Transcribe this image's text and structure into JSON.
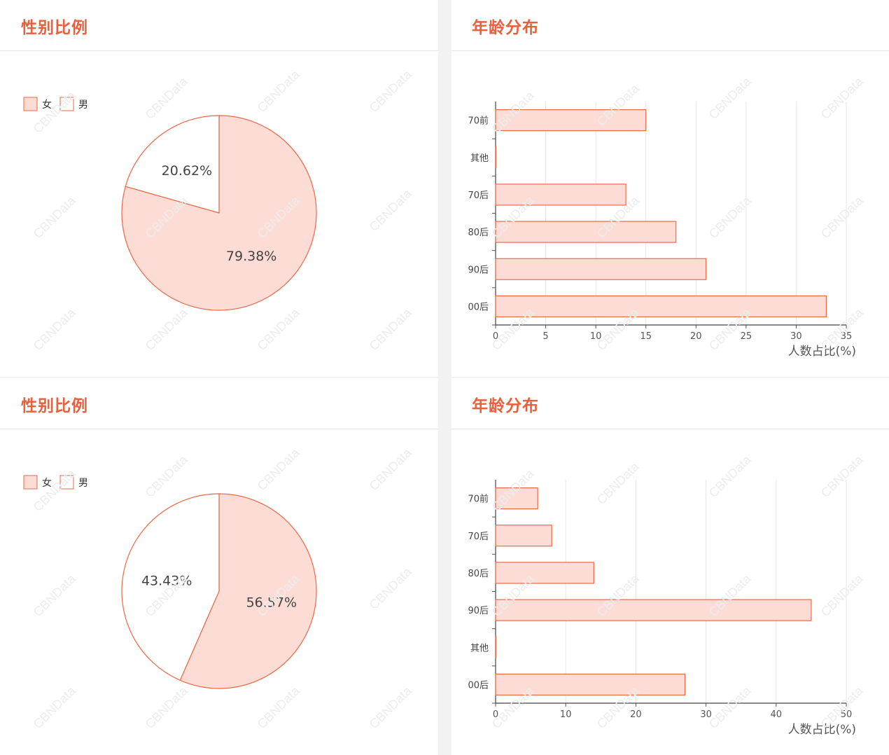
{
  "watermark": "CBNData",
  "colors": {
    "accent": "#e8603c",
    "fill": "#fedcd6",
    "stroke": "#ea6947"
  },
  "panels": [
    {
      "title": "性别比例",
      "chart_data": {
        "type": "pie",
        "legend": [
          "女",
          "男"
        ],
        "legend_position": "top-left",
        "slices": [
          {
            "label": "女",
            "value": 79.38,
            "text": "79.38%"
          },
          {
            "label": "男",
            "value": 20.62,
            "text": "20.62%"
          }
        ]
      }
    },
    {
      "title": "年龄分布",
      "chart_data": {
        "type": "bar",
        "orientation": "horizontal",
        "categories": [
          "70前",
          "其他",
          "70后",
          "80后",
          "90后",
          "00后"
        ],
        "values": [
          15,
          0,
          13,
          18,
          21,
          33
        ],
        "xlim": [
          0,
          35
        ],
        "xticks": [
          "0",
          "5",
          "10",
          "15",
          "20",
          "25",
          "30",
          "35"
        ],
        "xlabel": "人数占比(%)",
        "grid": true
      }
    },
    {
      "title": "性别比例",
      "chart_data": {
        "type": "pie",
        "legend": [
          "女",
          "男"
        ],
        "legend_position": "top-left",
        "slices": [
          {
            "label": "女",
            "value": 56.57,
            "text": "56.57%"
          },
          {
            "label": "男",
            "value": 43.43,
            "text": "43.43%"
          }
        ]
      }
    },
    {
      "title": "年龄分布",
      "chart_data": {
        "type": "bar",
        "orientation": "horizontal",
        "categories": [
          "70前",
          "70后",
          "80后",
          "90后",
          "其他",
          "00后"
        ],
        "values": [
          6,
          8,
          14,
          45,
          0,
          27
        ],
        "xlim": [
          0,
          50
        ],
        "xticks": [
          "0",
          "10",
          "20",
          "30",
          "40",
          "50"
        ],
        "xlabel": "人数占比(%)",
        "grid": true
      }
    }
  ]
}
